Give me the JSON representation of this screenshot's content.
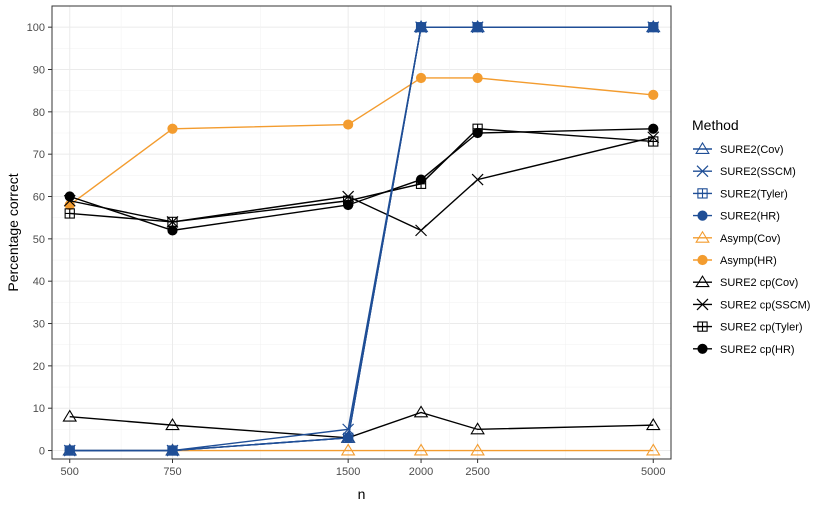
{
  "chart_data": {
    "type": "line",
    "title": "",
    "xlabel": "n",
    "ylabel": "Percentage correct",
    "x": [
      500,
      750,
      1500,
      2000,
      2500,
      5000
    ],
    "x_tick_labels": [
      "500",
      "750",
      "1500",
      "2000",
      "2500",
      "5000"
    ],
    "y_ticks": [
      0,
      10,
      20,
      30,
      40,
      50,
      60,
      70,
      80,
      90,
      100
    ],
    "y_tick_labels": [
      "0",
      "10",
      "20",
      "30",
      "40",
      "50",
      "60",
      "70",
      "80",
      "90",
      "100"
    ],
    "ylim": [
      -2,
      105
    ],
    "grid": true,
    "legend": {
      "title": "Method",
      "position": "right"
    },
    "series": [
      {
        "name": "SURE2(Cov)",
        "color": "#1F4E96",
        "marker": "triangle-open",
        "values": [
          0,
          0,
          3,
          100,
          100,
          100
        ]
      },
      {
        "name": "SURE2(SSCM)",
        "color": "#1F4E96",
        "marker": "x",
        "values": [
          0,
          0,
          5,
          100,
          100,
          100
        ]
      },
      {
        "name": "SURE2(Tyler)",
        "color": "#1F4E96",
        "marker": "square-plus",
        "values": [
          0,
          0,
          3,
          100,
          100,
          100
        ]
      },
      {
        "name": "SURE2(HR)",
        "color": "#1F4E96",
        "marker": "circle",
        "values": [
          0,
          0,
          3,
          100,
          100,
          100
        ]
      },
      {
        "name": "Asymp(Cov)",
        "color": "#F39C2F",
        "marker": "triangle-open",
        "values": [
          0,
          0,
          0,
          0,
          0,
          0
        ]
      },
      {
        "name": "Asymp(HR)",
        "color": "#F39C2F",
        "marker": "circle",
        "values": [
          58,
          76,
          77,
          88,
          88,
          84
        ]
      },
      {
        "name": "SURE2 cp(Cov)",
        "color": "#000000",
        "marker": "triangle-open",
        "values": [
          8,
          6,
          3,
          9,
          5,
          6
        ]
      },
      {
        "name": "SURE2 cp(SSCM)",
        "color": "#000000",
        "marker": "x",
        "values": [
          59,
          54,
          60,
          52,
          64,
          74
        ]
      },
      {
        "name": "SURE2 cp(Tyler)",
        "color": "#000000",
        "marker": "square-plus",
        "values": [
          56,
          54,
          59,
          63,
          76,
          73
        ]
      },
      {
        "name": "SURE2 cp(HR)",
        "color": "#000000",
        "marker": "circle",
        "values": [
          60,
          52,
          58,
          64,
          75,
          76
        ]
      }
    ]
  }
}
